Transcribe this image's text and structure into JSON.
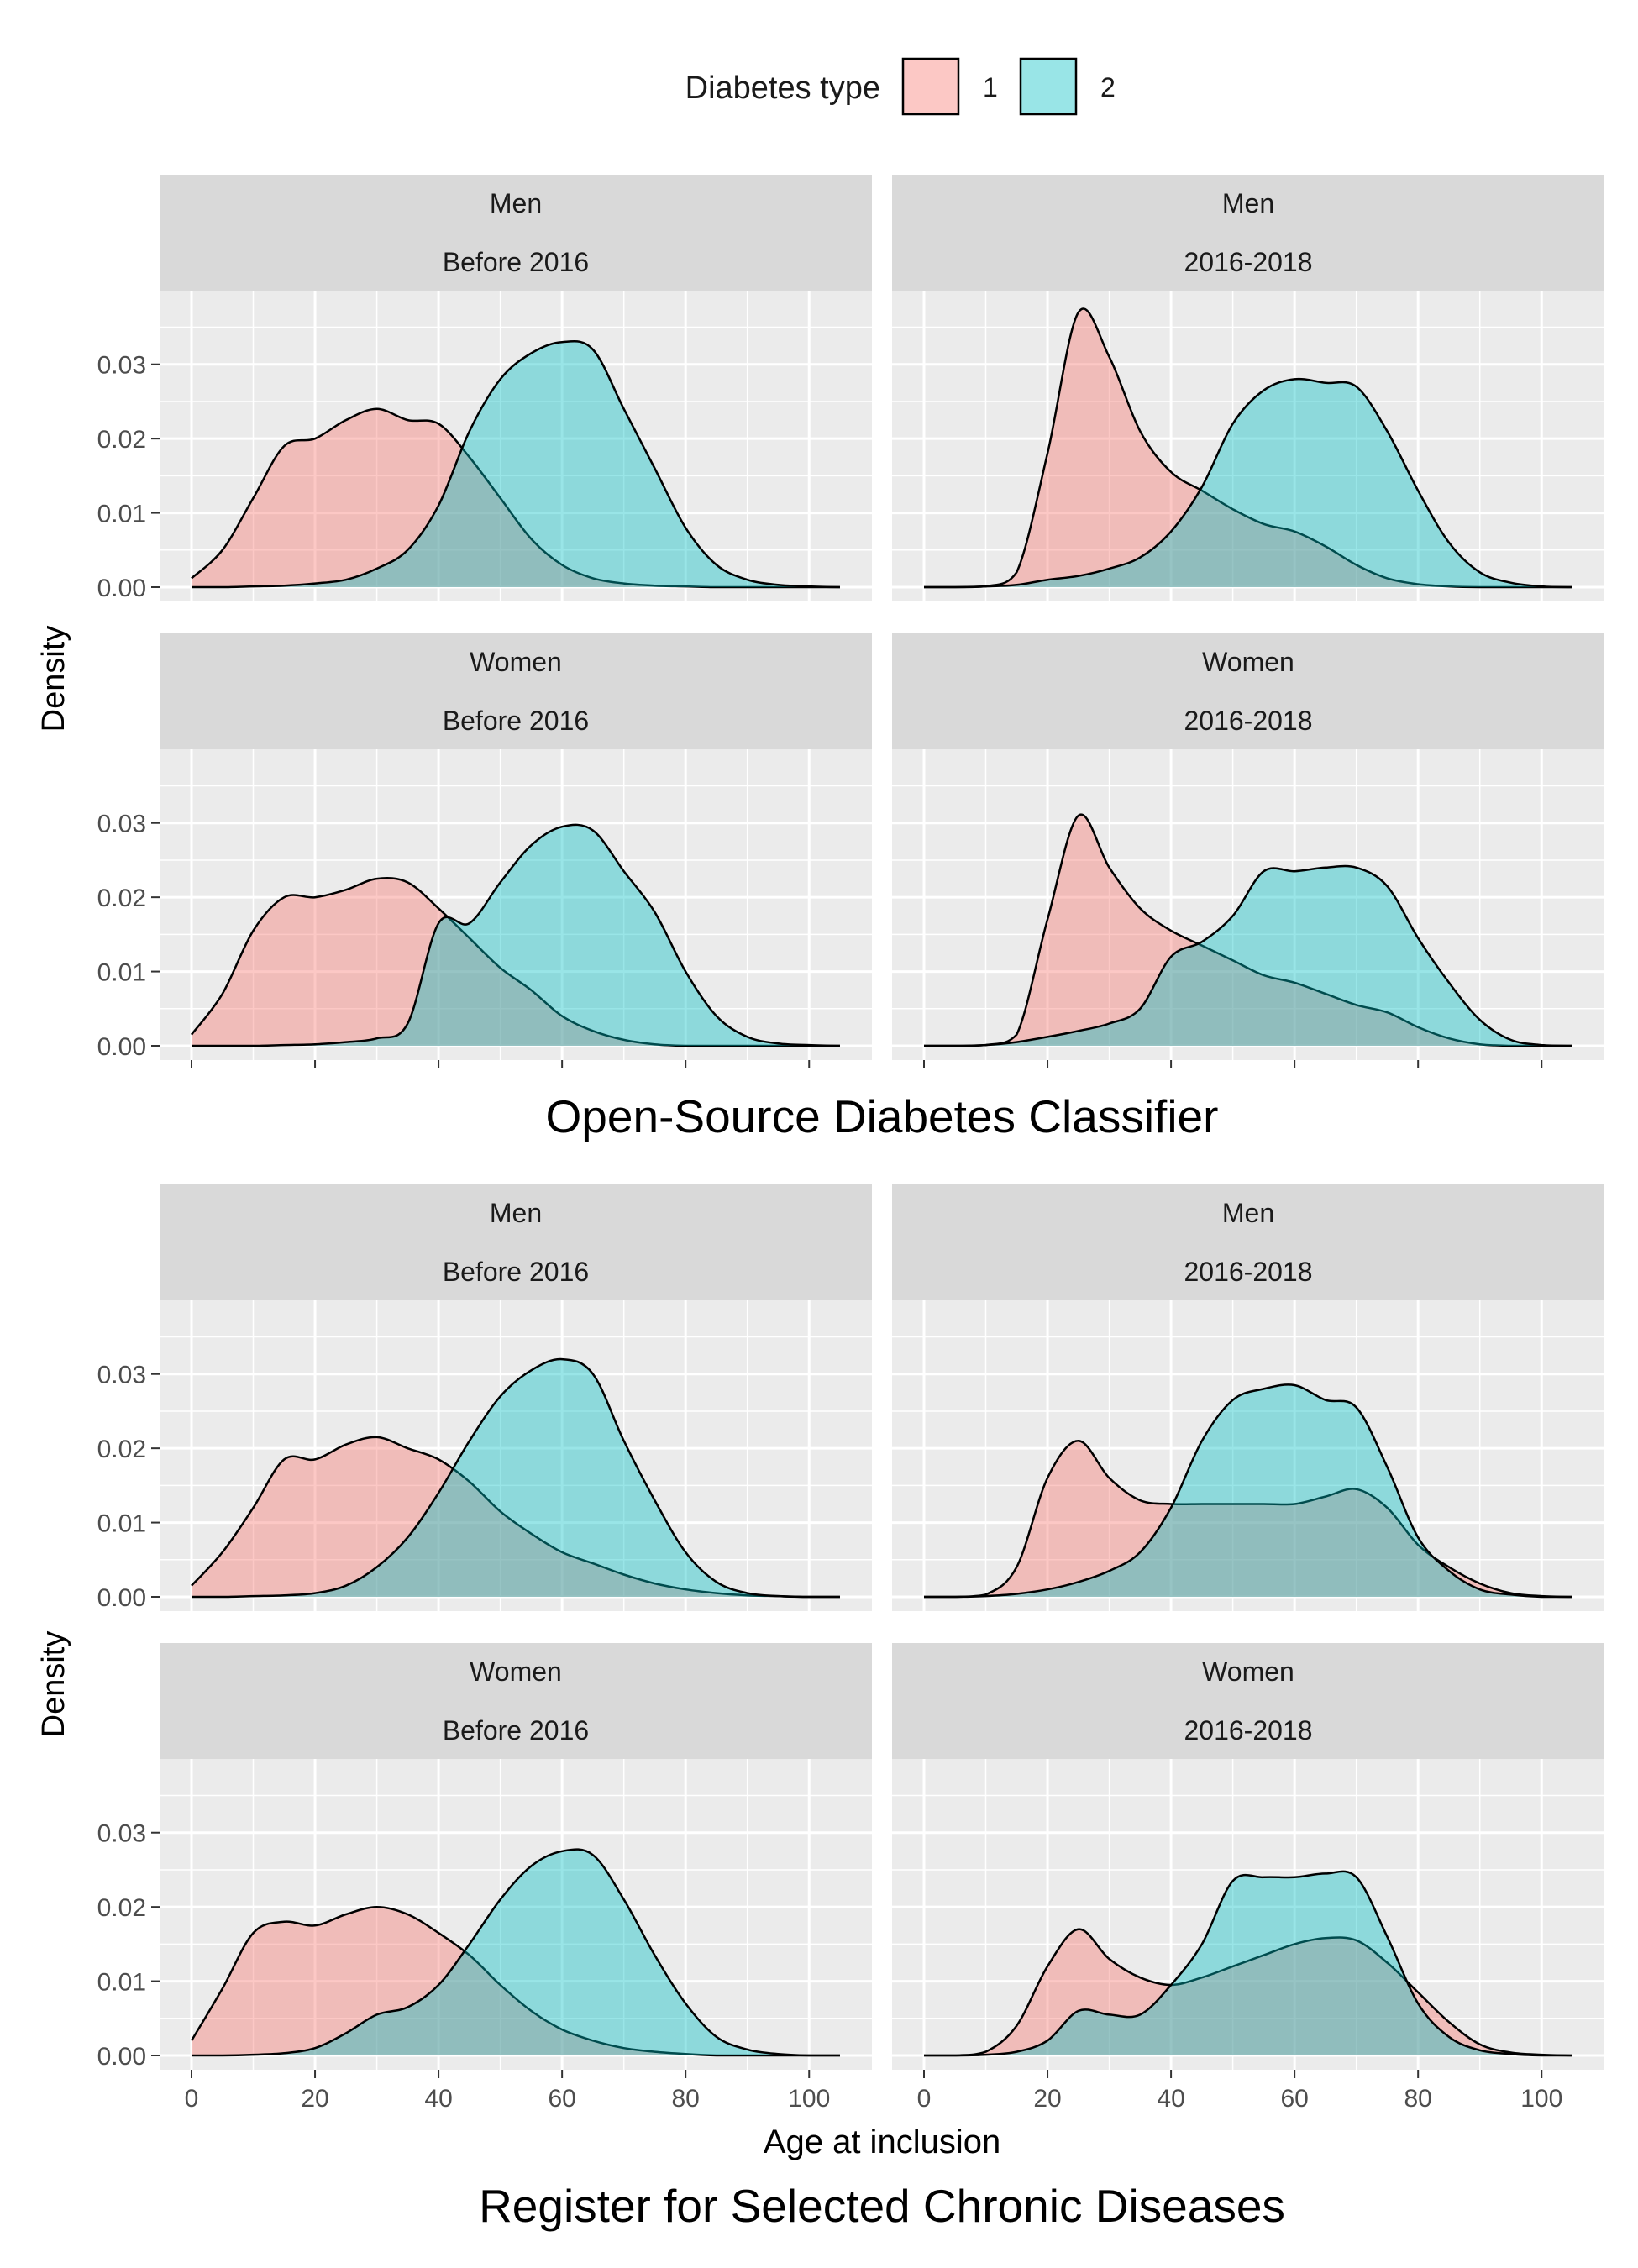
{
  "legend": {
    "title": "Diabetes type",
    "items": [
      {
        "label": "1",
        "color": "#F8766D"
      },
      {
        "label": "2",
        "color": "#00BFC4"
      }
    ]
  },
  "chart_data": {
    "type": "area",
    "subtype": "density",
    "x": [
      0,
      5,
      10,
      15,
      20,
      25,
      30,
      35,
      40,
      45,
      50,
      55,
      60,
      65,
      70,
      75,
      80,
      85,
      90,
      95,
      100,
      105
    ],
    "x_ticks": [
      0,
      20,
      40,
      60,
      80,
      100
    ],
    "y_ticks": [
      0.0,
      0.01,
      0.02,
      0.03
    ],
    "xlim": [
      0,
      105
    ],
    "ylim": [
      0,
      0.038
    ],
    "xlabel": "Age at inclusion",
    "ylabel": "Density",
    "grid": true,
    "legend_position": "top",
    "sections": [
      {
        "title": "Open-Source Diabetes Classifier",
        "panels": [
          {
            "strip": [
              "Men",
              "Before 2016"
            ],
            "series": [
              {
                "name": "1",
                "values": [
                  0.0012,
                  0.005,
                  0.012,
                  0.019,
                  0.02,
                  0.0225,
                  0.024,
                  0.0225,
                  0.022,
                  0.0175,
                  0.012,
                  0.0065,
                  0.003,
                  0.0012,
                  0.0005,
                  0.0002,
                  0.0001,
                  0.0,
                  0.0,
                  0.0,
                  0.0,
                  0.0
                ]
              },
              {
                "name": "2",
                "values": [
                  0.0,
                  0.0,
                  0.0001,
                  0.0002,
                  0.0005,
                  0.001,
                  0.0025,
                  0.005,
                  0.011,
                  0.021,
                  0.028,
                  0.0315,
                  0.033,
                  0.032,
                  0.024,
                  0.016,
                  0.008,
                  0.003,
                  0.001,
                  0.0003,
                  0.0001,
                  0.0
                ]
              }
            ]
          },
          {
            "strip": [
              "Men",
              "2016-2018"
            ],
            "series": [
              {
                "name": "1",
                "values": [
                  0.0,
                  0.0,
                  0.0001,
                  0.002,
                  0.018,
                  0.037,
                  0.031,
                  0.021,
                  0.0155,
                  0.013,
                  0.0105,
                  0.0085,
                  0.0075,
                  0.0055,
                  0.003,
                  0.0012,
                  0.0004,
                  0.0001,
                  0.0,
                  0.0,
                  0.0,
                  0.0
                ]
              },
              {
                "name": "2",
                "values": [
                  0.0,
                  0.0,
                  0.0001,
                  0.0003,
                  0.001,
                  0.0015,
                  0.0025,
                  0.004,
                  0.0075,
                  0.0135,
                  0.022,
                  0.0265,
                  0.028,
                  0.0275,
                  0.027,
                  0.021,
                  0.013,
                  0.006,
                  0.002,
                  0.0006,
                  0.0001,
                  0.0
                ]
              }
            ]
          },
          {
            "strip": [
              "Women",
              "Before 2016"
            ],
            "series": [
              {
                "name": "1",
                "values": [
                  0.0015,
                  0.007,
                  0.0155,
                  0.02,
                  0.02,
                  0.021,
                  0.0225,
                  0.022,
                  0.0185,
                  0.0145,
                  0.0105,
                  0.0075,
                  0.004,
                  0.002,
                  0.0008,
                  0.0002,
                  0.0,
                  0.0,
                  0.0,
                  0.0,
                  0.0,
                  0.0
                ]
              },
              {
                "name": "2",
                "values": [
                  0.0,
                  0.0,
                  0.0,
                  0.0001,
                  0.0002,
                  0.0005,
                  0.001,
                  0.003,
                  0.0165,
                  0.0165,
                  0.022,
                  0.027,
                  0.0295,
                  0.029,
                  0.0235,
                  0.018,
                  0.01,
                  0.004,
                  0.0012,
                  0.0003,
                  0.0001,
                  0.0
                ]
              }
            ]
          },
          {
            "strip": [
              "Women",
              "2016-2018"
            ],
            "series": [
              {
                "name": "1",
                "values": [
                  0.0,
                  0.0,
                  0.0001,
                  0.0015,
                  0.017,
                  0.031,
                  0.024,
                  0.0185,
                  0.0155,
                  0.0135,
                  0.0115,
                  0.0095,
                  0.0085,
                  0.007,
                  0.0055,
                  0.0045,
                  0.0025,
                  0.001,
                  0.0002,
                  0.0,
                  0.0,
                  0.0
                ]
              },
              {
                "name": "2",
                "values": [
                  0.0,
                  0.0,
                  0.0001,
                  0.0005,
                  0.0012,
                  0.002,
                  0.003,
                  0.005,
                  0.012,
                  0.014,
                  0.0175,
                  0.0235,
                  0.0235,
                  0.024,
                  0.024,
                  0.0215,
                  0.0145,
                  0.0085,
                  0.0035,
                  0.0008,
                  0.0001,
                  0.0
                ]
              }
            ]
          }
        ]
      },
      {
        "title": "Register for Selected Chronic Diseases",
        "panels": [
          {
            "strip": [
              "Men",
              "Before 2016"
            ],
            "series": [
              {
                "name": "1",
                "values": [
                  0.0015,
                  0.006,
                  0.012,
                  0.0185,
                  0.0185,
                  0.0205,
                  0.0215,
                  0.02,
                  0.0185,
                  0.0155,
                  0.0115,
                  0.0085,
                  0.006,
                  0.0045,
                  0.003,
                  0.0018,
                  0.001,
                  0.0005,
                  0.0002,
                  0.0001,
                  0.0,
                  0.0
                ]
              },
              {
                "name": "2",
                "values": [
                  0.0,
                  0.0,
                  0.0001,
                  0.0002,
                  0.0005,
                  0.0015,
                  0.004,
                  0.008,
                  0.014,
                  0.021,
                  0.027,
                  0.0305,
                  0.032,
                  0.03,
                  0.021,
                  0.013,
                  0.006,
                  0.002,
                  0.0005,
                  0.0001,
                  0.0,
                  0.0
                ]
              }
            ]
          },
          {
            "strip": [
              "Men",
              "2016-2018"
            ],
            "series": [
              {
                "name": "1",
                "values": [
                  0.0,
                  0.0,
                  0.0003,
                  0.004,
                  0.016,
                  0.021,
                  0.016,
                  0.013,
                  0.0125,
                  0.0125,
                  0.0125,
                  0.0125,
                  0.0125,
                  0.0135,
                  0.0145,
                  0.012,
                  0.007,
                  0.004,
                  0.0018,
                  0.0005,
                  0.0001,
                  0.0
                ]
              },
              {
                "name": "2",
                "values": [
                  0.0,
                  0.0,
                  0.0001,
                  0.0004,
                  0.001,
                  0.002,
                  0.0035,
                  0.006,
                  0.012,
                  0.021,
                  0.0265,
                  0.028,
                  0.0285,
                  0.0265,
                  0.0255,
                  0.0175,
                  0.008,
                  0.0035,
                  0.001,
                  0.0003,
                  0.0,
                  0.0
                ]
              }
            ]
          },
          {
            "strip": [
              "Women",
              "Before 2016"
            ],
            "series": [
              {
                "name": "1",
                "values": [
                  0.002,
                  0.009,
                  0.0165,
                  0.018,
                  0.0175,
                  0.019,
                  0.02,
                  0.019,
                  0.0165,
                  0.0135,
                  0.0095,
                  0.006,
                  0.0035,
                  0.002,
                  0.001,
                  0.0005,
                  0.0002,
                  0.0,
                  0.0,
                  0.0,
                  0.0,
                  0.0
                ]
              },
              {
                "name": "2",
                "values": [
                  0.0,
                  0.0,
                  0.0001,
                  0.0003,
                  0.001,
                  0.003,
                  0.0055,
                  0.0065,
                  0.0095,
                  0.015,
                  0.021,
                  0.0255,
                  0.0275,
                  0.027,
                  0.021,
                  0.0135,
                  0.007,
                  0.0025,
                  0.0008,
                  0.0002,
                  0.0,
                  0.0
                ]
              }
            ]
          },
          {
            "strip": [
              "Women",
              "2016-2018"
            ],
            "series": [
              {
                "name": "1",
                "values": [
                  0.0,
                  0.0,
                  0.0005,
                  0.004,
                  0.012,
                  0.017,
                  0.013,
                  0.0105,
                  0.0095,
                  0.0105,
                  0.012,
                  0.0135,
                  0.015,
                  0.0158,
                  0.0155,
                  0.0125,
                  0.0085,
                  0.0045,
                  0.0015,
                  0.0004,
                  0.0001,
                  0.0
                ]
              },
              {
                "name": "2",
                "values": [
                  0.0,
                  0.0,
                  0.0001,
                  0.0005,
                  0.002,
                  0.006,
                  0.0055,
                  0.0055,
                  0.0095,
                  0.015,
                  0.0235,
                  0.024,
                  0.024,
                  0.0245,
                  0.024,
                  0.016,
                  0.007,
                  0.0025,
                  0.0007,
                  0.0002,
                  0.0,
                  0.0
                ]
              }
            ]
          }
        ]
      }
    ]
  }
}
